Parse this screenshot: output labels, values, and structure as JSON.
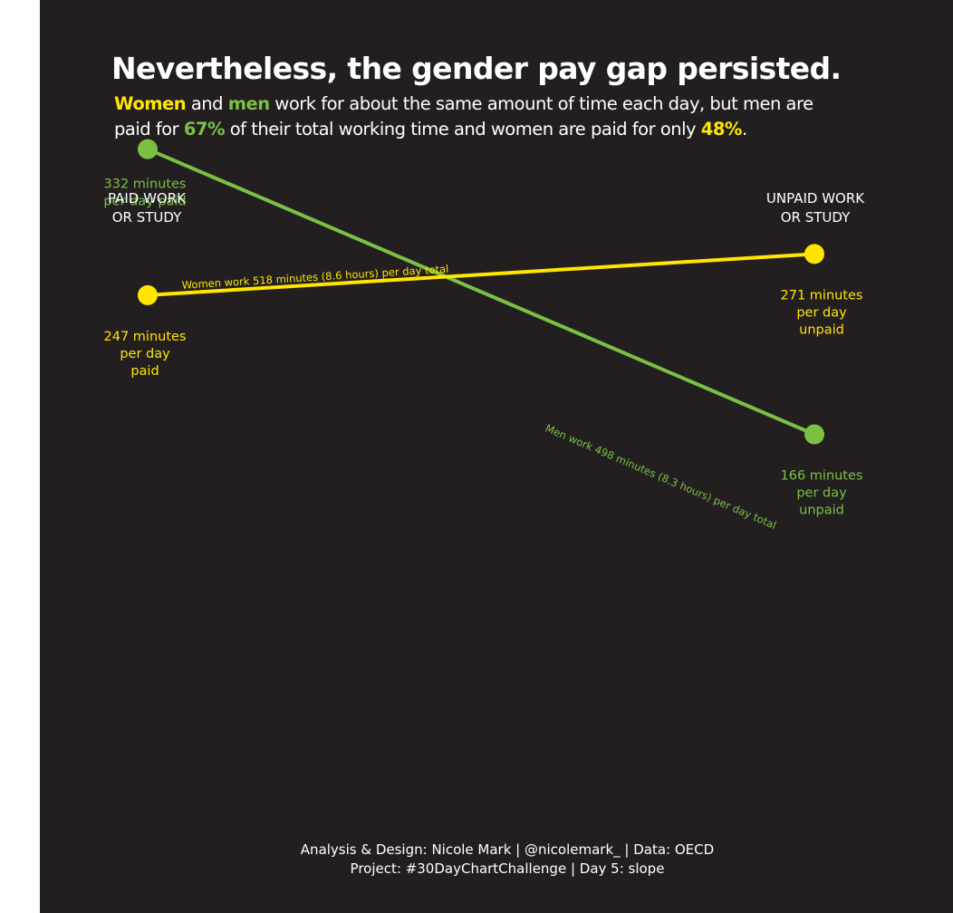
{
  "title": "Nevertheless, the gender pay gap persisted.",
  "subtitle": {
    "women": "Women",
    "and": " and ",
    "men": "men",
    "part1": " work for about the same amount of time each day, but men are",
    "part2": "paid for ",
    "men_pct": "67%",
    "part3": " of their total working time and women are paid for only ",
    "women_pct": "48%",
    "end": "."
  },
  "axis_headers": {
    "left": "PAID WORK\nOR STUDY",
    "right": "UNPAID WORK\nOR STUDY"
  },
  "caption": {
    "line1": "Analysis & Design: Nicole Mark | @nicolemark_ | Data: OECD",
    "line2": "Project: #30DayChartChallenge | Day 5: slope"
  },
  "colors": {
    "background": "#231f20",
    "women": "#ffe500",
    "men": "#7ac143",
    "text": "#ffffff"
  },
  "chart_data": {
    "type": "line",
    "subtype": "slope",
    "categories": [
      "PAID WORK OR STUDY",
      "UNPAID WORK OR STUDY"
    ],
    "grid": false,
    "legend": "none",
    "ylim": [
      150,
      340
    ],
    "series": [
      {
        "key": "men",
        "color": "#7ac143",
        "values": [
          332,
          166
        ],
        "point_labels": [
          [
            "332 minutes",
            "per day paid"
          ],
          [
            "166 minutes",
            "per day",
            "unpaid"
          ]
        ],
        "line_label": "Men work 498 minutes (8.3 hours) per day total"
      },
      {
        "key": "women",
        "color": "#ffe500",
        "values": [
          247,
          271
        ],
        "point_labels": [
          [
            "247 minutes",
            "per day",
            "paid"
          ],
          [
            "271 minutes",
            "per day",
            "unpaid"
          ]
        ],
        "line_label": "Women work 518 minutes (8.6 hours) per day total"
      }
    ]
  }
}
